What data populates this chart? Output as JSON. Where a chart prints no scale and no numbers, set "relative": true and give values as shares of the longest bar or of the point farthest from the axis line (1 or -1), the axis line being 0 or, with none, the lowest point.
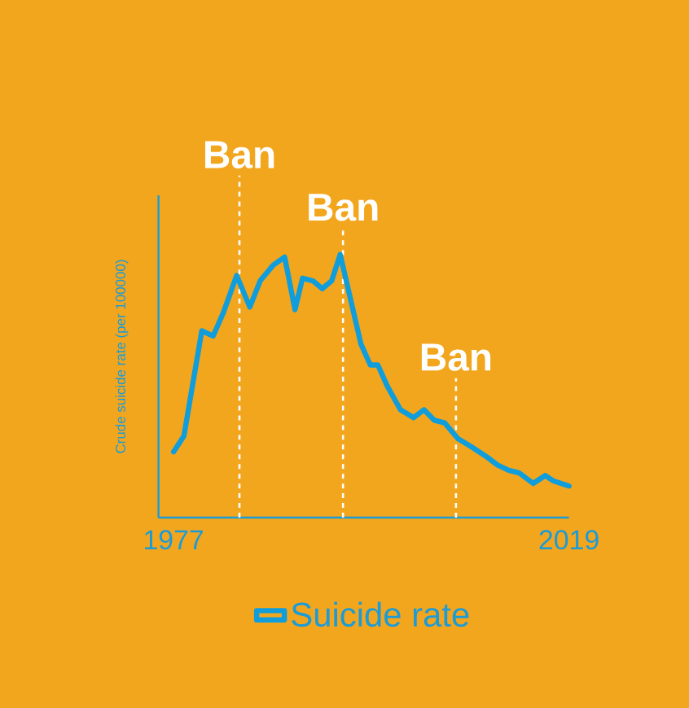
{
  "chart_data": {
    "type": "line",
    "relative": true,
    "ylabel": "Crude suicide rate (per 100000)",
    "xlim": [
      1975.4,
      2019
    ],
    "xticks": [
      1977,
      2019
    ],
    "legend": "bottom",
    "grid": false,
    "ref_lines": [
      {
        "axis": "x",
        "value": 1984,
        "label": "Ban",
        "color": "#ffffff",
        "line_style": "dashed"
      },
      {
        "axis": "x",
        "value": 1995,
        "label": "Ban",
        "color": "#ffffff",
        "line_style": "dashed"
      },
      {
        "axis": "x",
        "value": 2007,
        "label": "Ban",
        "color": "#ffffff",
        "line_style": "dashed"
      }
    ],
    "series": [
      {
        "name": "Suicide rate",
        "color": "#0f9ddc",
        "x": [
          1977,
          1978.1,
          1980,
          1981.2,
          1982.3,
          1983.7,
          1985.1,
          1986.2,
          1987.6,
          1988.8,
          1989.9,
          1990.7,
          1991.8,
          1992.8,
          1993.8,
          1994.7,
          1995.8,
          1996.9,
          1997.9,
          1998.7,
          1999.7,
          2001.1,
          2002.5,
          2003.6,
          2004.7,
          2005.8,
          2007.2,
          2008.6,
          2010.3,
          2011.4,
          2012.6,
          2013.7,
          2015.2,
          2016.5,
          2017.3,
          2019
        ],
        "values": [
          0.25,
          0.31,
          0.71,
          0.69,
          0.78,
          0.92,
          0.8,
          0.9,
          0.96,
          0.99,
          0.79,
          0.91,
          0.9,
          0.87,
          0.9,
          1,
          0.83,
          0.66,
          0.58,
          0.58,
          0.5,
          0.41,
          0.38,
          0.41,
          0.37,
          0.36,
          0.3,
          0.27,
          0.23,
          0.2,
          0.18,
          0.17,
          0.13,
          0.16,
          0.14,
          0.12
        ]
      }
    ]
  }
}
